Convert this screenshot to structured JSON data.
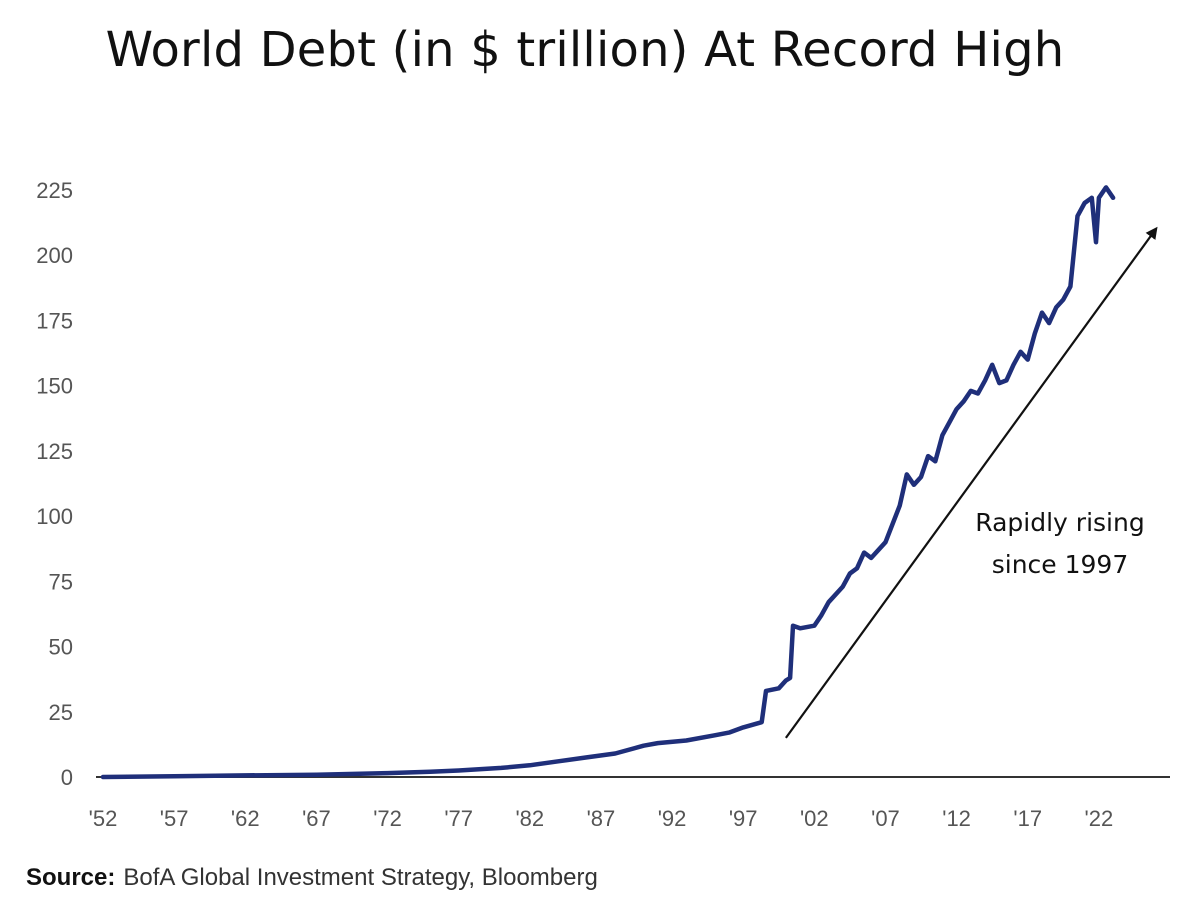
{
  "chart_data": {
    "type": "line",
    "title": "World Debt (in $ trillion) At Record High",
    "xlabel": "",
    "ylabel": "",
    "x_tick_labels": [
      "'52",
      "'57",
      "'62",
      "'67",
      "'72",
      "'77",
      "'82",
      "'87",
      "'92",
      "'97",
      "'02",
      "'07",
      "'12",
      "'17",
      "'22"
    ],
    "y_tick_labels": [
      "0",
      "25",
      "50",
      "75",
      "100",
      "125",
      "150",
      "175",
      "200",
      "225"
    ],
    "xlim": [
      1952,
      2027
    ],
    "ylim": [
      0,
      225
    ],
    "grid": false,
    "legend": "none",
    "series": [
      {
        "color": "#1f2f7a",
        "x": [
          1952,
          1957,
          1962,
          1967,
          1972,
          1975,
          1977,
          1980,
          1982,
          1984,
          1986,
          1988,
          1990,
          1991,
          1993,
          1995,
          1996,
          1997,
          1998.3,
          1998.6,
          1999.5,
          2000.0,
          2000.3,
          2000.5,
          2001.0,
          2002.0,
          2002.5,
          2003.0,
          2004.0,
          2004.5,
          2005.0,
          2005.5,
          2006.0,
          2007.0,
          2007.5,
          2008.0,
          2008.5,
          2009.0,
          2009.5,
          2010.0,
          2010.5,
          2011.0,
          2011.5,
          2012.0,
          2012.5,
          2013.0,
          2013.5,
          2014.0,
          2014.5,
          2015.0,
          2015.5,
          2016.0,
          2016.5,
          2017.0,
          2017.5,
          2018.0,
          2018.5,
          2019.0,
          2019.5,
          2020.0,
          2020.5,
          2021.0,
          2021.5,
          2021.8,
          2022.0,
          2022.5,
          2023.0
        ],
        "y": [
          0,
          0.3,
          0.6,
          0.9,
          1.5,
          2,
          2.5,
          3.5,
          4.5,
          6,
          7.5,
          9,
          12,
          13,
          14,
          16,
          17,
          19,
          21,
          33,
          34,
          37,
          38,
          58,
          57,
          58,
          62,
          67,
          73,
          78,
          80,
          86,
          84,
          90,
          97,
          104,
          116,
          112,
          115,
          123,
          121,
          131,
          136,
          141,
          144,
          148,
          147,
          152,
          158,
          151,
          152,
          158,
          163,
          160,
          170,
          178,
          174,
          180,
          183,
          188,
          215,
          220,
          222,
          205,
          222,
          226,
          222
        ]
      }
    ],
    "annotations": [
      {
        "text_lines": [
          "Rapidly rising",
          "since 1997"
        ],
        "arrow_from": [
          2000,
          15
        ],
        "arrow_to": [
          2026,
          210
        ]
      }
    ],
    "source": {
      "label": "Source:",
      "text": "BofA Global Investment Strategy, Bloomberg"
    }
  }
}
